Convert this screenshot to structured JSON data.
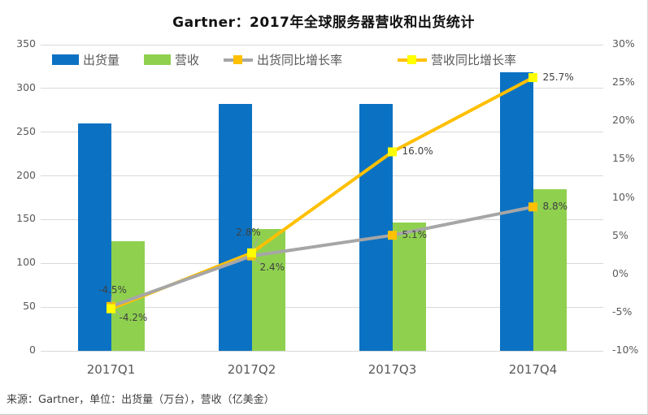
{
  "title": "Gartner：2017年全球服务器营收和出货统计",
  "source_note": "来源：Gartner，单位：出货量（万台），营收（亿美金）",
  "colors": {
    "shipments_bar": "#0b72c3",
    "revenue_bar": "#8fd14f",
    "shipments_growth_line": "#a6a6a6",
    "shipments_growth_marker": "#ffc000",
    "revenue_growth_line": "#ffc000",
    "revenue_growth_marker": "#ffff00",
    "gridline": "#d9d9d9",
    "axis_text": "#595959",
    "point_label_text": "#404040"
  },
  "legend": [
    {
      "label": "出货量",
      "swatch": "bar"
    },
    {
      "label": "营收",
      "swatch": "bar"
    },
    {
      "label": "出货同比增长率",
      "swatch": "line-marker"
    },
    {
      "label": "营收同比增长率",
      "swatch": "line-marker"
    }
  ],
  "chart_data": {
    "type": "bar",
    "subtype": "combo bar + line, dual axis",
    "title": "Gartner：2017年全球服务器营收和出货统计",
    "categories": [
      "2017Q1",
      "2017Q2",
      "2017Q3",
      "2017Q4"
    ],
    "left_axis": {
      "min": 0,
      "max": 350,
      "step": 50,
      "ticks": [
        "350",
        "300",
        "250",
        "200",
        "150",
        "100",
        "50",
        "0"
      ]
    },
    "right_axis": {
      "min": -10,
      "max": 30,
      "step": 5,
      "ticks": [
        "30%",
        "25%",
        "20%",
        "15%",
        "10%",
        "5%",
        "0%",
        "-5%",
        "-10%"
      ]
    },
    "grid": "horizontal only",
    "legend_position": "top",
    "series": [
      {
        "name": "出货量",
        "type": "bar",
        "axis": "left",
        "unit": "万台",
        "values": [
          260,
          282,
          282,
          318
        ]
      },
      {
        "name": "营收",
        "type": "bar",
        "axis": "left",
        "unit": "亿美金",
        "values": [
          125,
          139,
          147,
          185
        ]
      },
      {
        "name": "出货同比增长率",
        "type": "line",
        "axis": "right",
        "values": [
          -4.2,
          2.4,
          5.1,
          8.8
        ],
        "point_labels": [
          "-4.2%",
          "2.4%",
          "5.1%",
          "8.8%"
        ],
        "label_placements": [
          "below-right",
          "below-right",
          "right",
          "right"
        ]
      },
      {
        "name": "营收同比增长率",
        "type": "line",
        "axis": "right",
        "values": [
          -4.5,
          2.8,
          16.0,
          25.7
        ],
        "point_labels": [
          "-4.5%",
          "2.8%",
          "16.0%",
          "25.7%"
        ],
        "label_placements": [
          "above-left",
          "above",
          "right",
          "right"
        ]
      }
    ]
  }
}
